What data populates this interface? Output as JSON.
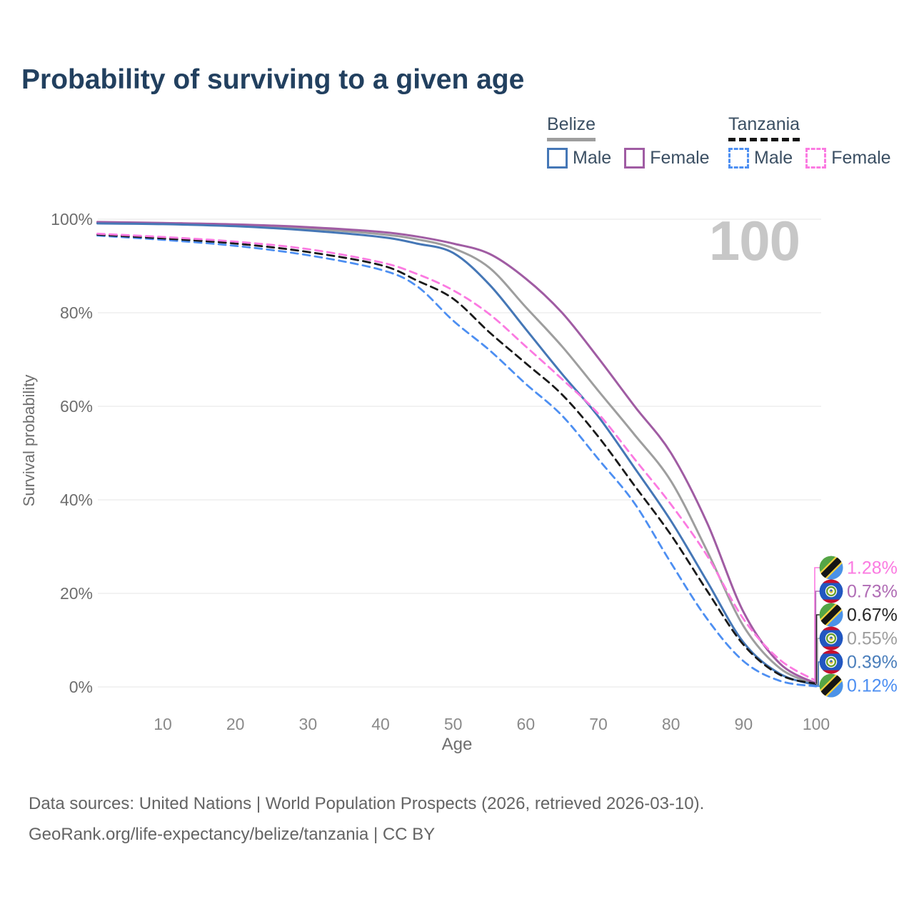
{
  "title": "Probability of surviving to a given age",
  "watermark": "100",
  "legend": {
    "groups": [
      {
        "country": "Belize",
        "underline": "solid",
        "items": [
          {
            "label": "Male",
            "color": "#4577b6",
            "dashed": false
          },
          {
            "label": "Female",
            "color": "#a05ca3",
            "dashed": false
          }
        ]
      },
      {
        "country": "Tanzania",
        "underline": "dashed",
        "items": [
          {
            "label": "Male",
            "color": "#4d8ff2",
            "dashed": true
          },
          {
            "label": "Female",
            "color": "#fb7ae1",
            "dashed": true
          }
        ]
      }
    ]
  },
  "chart_data": {
    "type": "line",
    "title": "Probability of surviving to a given age",
    "xlabel": "Age",
    "ylabel": "Survival probability",
    "xlim": [
      1,
      100
    ],
    "ylim": [
      0,
      100
    ],
    "grid": "horizontal",
    "x_ticks": [
      10,
      20,
      30,
      40,
      50,
      60,
      70,
      80,
      90,
      100
    ],
    "y_ticks": [
      {
        "value": 0,
        "label": "0%"
      },
      {
        "value": 20,
        "label": "20%"
      },
      {
        "value": 40,
        "label": "40%"
      },
      {
        "value": 60,
        "label": "60%"
      },
      {
        "value": 80,
        "label": "80%"
      },
      {
        "value": 100,
        "label": "100%"
      }
    ],
    "ages": [
      1,
      10,
      20,
      30,
      40,
      45,
      50,
      55,
      60,
      65,
      70,
      75,
      80,
      85,
      90,
      95,
      100
    ],
    "series": [
      {
        "name": "Tanzania Female",
        "country": "Tanzania",
        "sex": "Female",
        "color": "#fb7ae1",
        "dashed": true,
        "flag": "tanzania",
        "end_label": "1.28%",
        "end_value": 1.28,
        "label_color": "#fb7ae1",
        "values": [
          96.9,
          96.2,
          95.2,
          93.6,
          90.8,
          88.3,
          84.8,
          79.7,
          72.8,
          65.8,
          58.4,
          48.7,
          39.0,
          28.0,
          14.5,
          5.8,
          1.28
        ]
      },
      {
        "name": "Belize Female",
        "country": "Belize",
        "sex": "Female",
        "color": "#a05ca3",
        "dashed": false,
        "flag": "belize",
        "end_label": "0.73%",
        "end_value": 0.73,
        "label_color": "#b06cb5",
        "values": [
          99.4,
          99.2,
          98.9,
          98.3,
          97.3,
          96.3,
          94.8,
          92.6,
          87.3,
          80.0,
          70.3,
          60.0,
          50.0,
          35.0,
          16.0,
          5.0,
          0.73
        ]
      },
      {
        "name": "Tanzania",
        "country": "Tanzania",
        "sex": "Both",
        "color": "#1a1a1a",
        "dashed": true,
        "flag": "tanzania",
        "end_label": "0.67%",
        "end_value": 0.67,
        "label_color": "#262626",
        "values": [
          96.7,
          95.9,
          94.8,
          93.0,
          90.2,
          86.9,
          83.0,
          75.8,
          69.2,
          62.5,
          53.5,
          43.0,
          32.5,
          20.5,
          9.0,
          2.6,
          0.67
        ]
      },
      {
        "name": "Belize",
        "country": "Belize",
        "sex": "Both",
        "color": "#9e9e9e",
        "dashed": false,
        "flag": "belize",
        "end_label": "0.55%",
        "end_value": 0.55,
        "label_color": "#9e9e9e",
        "values": [
          99.25,
          99.1,
          98.7,
          98.0,
          96.8,
          95.7,
          93.8,
          89.6,
          81.2,
          72.8,
          63.3,
          53.9,
          44.0,
          29.0,
          13.0,
          4.0,
          0.55
        ]
      },
      {
        "name": "Belize Male",
        "country": "Belize",
        "sex": "Male",
        "color": "#4577b6",
        "dashed": false,
        "flag": "belize",
        "end_label": "0.39%",
        "end_value": 0.39,
        "label_color": "#4a7ebb",
        "values": [
          99.1,
          98.95,
          98.5,
          97.6,
          96.2,
          94.8,
          92.8,
          86.0,
          76.5,
          66.9,
          57.8,
          46.8,
          35.5,
          22.5,
          9.5,
          2.8,
          0.39
        ]
      },
      {
        "name": "Tanzania Male",
        "country": "Tanzania",
        "sex": "Male",
        "color": "#4d8ff2",
        "dashed": true,
        "flag": "tanzania",
        "end_label": "0.12%",
        "end_value": 0.12,
        "label_color": "#4d8ff2",
        "values": [
          96.5,
          95.6,
          94.3,
          92.3,
          89.2,
          85.7,
          78.3,
          72.0,
          64.8,
          58.0,
          48.7,
          39.2,
          26.5,
          14.5,
          5.5,
          1.3,
          0.12
        ]
      }
    ]
  },
  "footer": {
    "line1": "Data sources: United Nations | World Population Prospects (2026, retrieved 2026-03-10).",
    "line2": "GeoRank.org/life-expectancy/belize/tanzania | CC BY"
  }
}
